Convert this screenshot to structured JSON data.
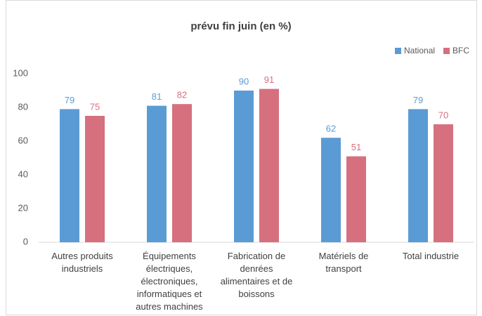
{
  "chart_data": {
    "type": "bar",
    "title": "prévu fin juin (en %)",
    "categories": [
      "Autres produits industriels",
      "Équipements électriques, électroniques, informatiques et autres machines",
      "Fabrication de denrées alimentaires et de boissons",
      "Matériels de transport",
      "Total industrie"
    ],
    "series": [
      {
        "name": "National",
        "color": "#5b9bd5",
        "values": [
          79,
          81,
          90,
          62,
          79
        ]
      },
      {
        "name": "BFC",
        "color": "#d6707e",
        "values": [
          75,
          82,
          91,
          51,
          70
        ]
      }
    ],
    "ylim": [
      0,
      100
    ],
    "yticks": [
      0,
      20,
      40,
      60,
      80,
      100
    ],
    "grid": false,
    "legend": "top-right"
  }
}
